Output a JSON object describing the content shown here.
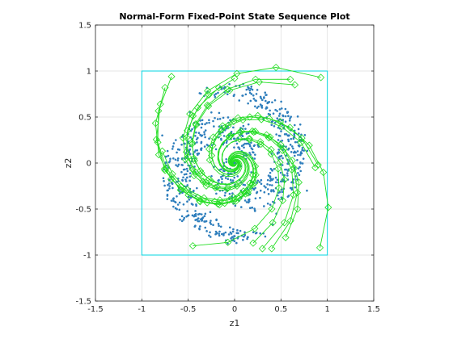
{
  "chart_data": {
    "type": "scatter",
    "title": "Normal-Form Fixed-Point State Sequence Plot",
    "xlabel": "z1",
    "ylabel": "z2",
    "xlim": [
      -1.5,
      1.5
    ],
    "ylim": [
      -1.5,
      1.5
    ],
    "xticks": [
      "-1.5",
      "-1",
      "-0.5",
      "0",
      "0.5",
      "1",
      "1.5"
    ],
    "yticks": [
      "-1.5",
      "-1",
      "-0.5",
      "0",
      "0.5",
      "1",
      "1.5"
    ],
    "grid": true,
    "box": {
      "x": [
        -1,
        1
      ],
      "y": [
        -1,
        1
      ],
      "color": "#00d5e0"
    },
    "colors": {
      "points": "#2e7ebc",
      "trajectories": "#22dd22",
      "grid": "#dddddd",
      "axes": "#262626"
    },
    "series": [
      {
        "kind": "scatter-cloud",
        "description_points": "dense rotating spiral cloud of points centered at origin with radius about 0.8",
        "points": [
          [
            -0.05,
            0.02
          ],
          [
            0.04,
            -0.03
          ],
          [
            0.1,
            0.08
          ],
          [
            -0.12,
            -0.06
          ],
          [
            0.18,
            -0.1
          ],
          [
            -0.2,
            0.15
          ],
          [
            0.25,
            0.2
          ],
          [
            -0.28,
            -0.22
          ],
          [
            0.32,
            -0.25
          ],
          [
            -0.35,
            0.3
          ],
          [
            0.4,
            0.1
          ],
          [
            -0.42,
            -0.1
          ],
          [
            0.15,
            0.42
          ],
          [
            -0.15,
            -0.44
          ],
          [
            0.5,
            -0.2
          ],
          [
            -0.5,
            0.22
          ],
          [
            0.22,
            -0.52
          ],
          [
            -0.25,
            0.55
          ],
          [
            0.58,
            0.3
          ],
          [
            -0.6,
            -0.3
          ],
          [
            0.35,
            0.6
          ],
          [
            -0.35,
            -0.62
          ],
          [
            0.65,
            -0.05
          ],
          [
            -0.66,
            0.05
          ],
          [
            0.05,
            0.68
          ],
          [
            -0.05,
            -0.7
          ],
          [
            0.45,
            -0.55
          ],
          [
            -0.48,
            0.55
          ],
          [
            0.7,
            0.25
          ],
          [
            -0.7,
            -0.25
          ],
          [
            0.28,
            0.72
          ],
          [
            -0.3,
            -0.74
          ],
          [
            0.1,
            -0.8
          ],
          [
            -0.1,
            0.82
          ],
          [
            0.78,
            -0.3
          ],
          [
            -0.78,
            0.3
          ],
          [
            0.55,
            0.45
          ],
          [
            -0.55,
            -0.45
          ],
          [
            0.08,
            0.3
          ],
          [
            -0.08,
            -0.3
          ]
        ]
      },
      {
        "kind": "trajectories",
        "starts": [
          [
            -0.68,
            0.94
          ],
          [
            -0.75,
            0.82
          ],
          [
            -0.8,
            0.64
          ],
          [
            -0.78,
            0.13
          ],
          [
            -0.75,
            -0.08
          ],
          [
            -0.45,
            -0.9
          ],
          [
            0.6,
            0.91
          ],
          [
            0.65,
            0.85
          ],
          [
            0.93,
            0.93
          ],
          [
            0.55,
            -0.81
          ],
          [
            0.87,
            -0.05
          ],
          [
            0.9,
            -0.02
          ],
          [
            0.92,
            -0.92
          ],
          [
            0.4,
            -0.93
          ],
          [
            0.3,
            -0.93
          ],
          [
            0.2,
            -0.87
          ],
          [
            0.0,
            0.92
          ],
          [
            -0.17,
            0.82
          ]
        ]
      }
    ]
  }
}
